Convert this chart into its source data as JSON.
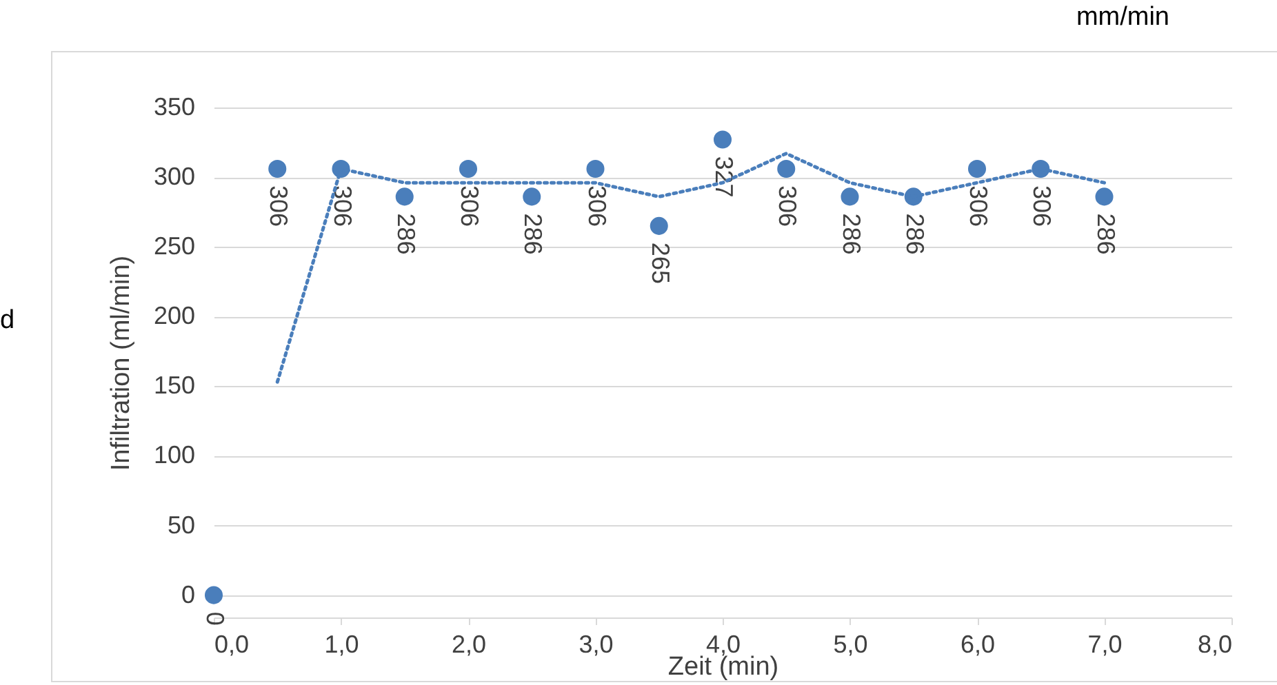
{
  "chart_data": {
    "type": "scatter",
    "xlabel": "Zeit (min)",
    "ylabel": "Infiltration (ml/min)",
    "annotations": [
      "mm/min",
      "d"
    ],
    "x": [
      0,
      0.5,
      1,
      1.5,
      2,
      2.5,
      3,
      3.5,
      4,
      4.5,
      5,
      5.5,
      6,
      6.5,
      7
    ],
    "series": [
      {
        "color": "#4a7ebb",
        "marker": "circle",
        "values": [
          0,
          306,
          306,
          286,
          306,
          286,
          306,
          265,
          327,
          306,
          286,
          286,
          306,
          306,
          286
        ],
        "value_labels": [
          "0",
          "306",
          "306",
          "286",
          "306",
          "286",
          "306",
          "265",
          "327",
          "306",
          "286",
          "286",
          "306",
          "306",
          "286"
        ]
      },
      {
        "type": "line",
        "color": "#4a7ebb",
        "line_style": "dotted",
        "marker": "none",
        "x": [
          0.5,
          1,
          1.5,
          2,
          2.5,
          3,
          3.5,
          4,
          4.5,
          5,
          5.5,
          6,
          6.5,
          7
        ],
        "values": [
          153,
          306,
          296,
          296,
          296,
          296,
          286,
          296,
          317,
          296,
          286,
          296,
          306,
          296
        ]
      }
    ],
    "xlim": [
      0,
      8
    ],
    "xticks": [
      {
        "value": 0,
        "label": "0,0"
      },
      {
        "value": 1,
        "label": "1,0"
      },
      {
        "value": 2,
        "label": "2,0"
      },
      {
        "value": 3,
        "label": "3,0"
      },
      {
        "value": 4,
        "label": "4,0"
      },
      {
        "value": 5,
        "label": "5,0"
      },
      {
        "value": 6,
        "label": "6,0"
      },
      {
        "value": 7,
        "label": "7,0"
      },
      {
        "value": 8,
        "label": "8,0"
      }
    ],
    "ylim": [
      -16,
      350
    ],
    "yticks": [
      0,
      50,
      100,
      150,
      200,
      250,
      300,
      350
    ],
    "grid": "y"
  }
}
